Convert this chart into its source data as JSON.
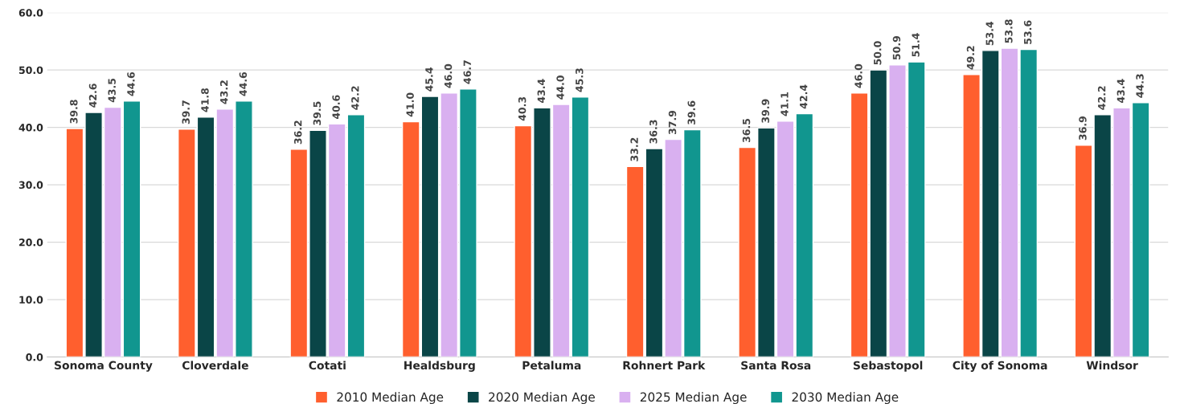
{
  "chart_data": {
    "type": "bar",
    "categories": [
      "Sonoma County",
      "Cloverdale",
      "Cotati",
      "Healdsburg",
      "Petaluma",
      "Rohnert Park",
      "Santa Rosa",
      "Sebastopol",
      "City of Sonoma",
      "Windsor"
    ],
    "series": [
      {
        "name": "2010 Median Age",
        "color": "#ff5f2e",
        "values": [
          39.8,
          39.7,
          36.2,
          41.0,
          40.3,
          33.2,
          36.5,
          46.0,
          49.2,
          36.9
        ],
        "value_labels": [
          "39.8",
          "39.7",
          "36.2",
          "41.0",
          "40.3",
          "33.2",
          "36.5",
          "46.0",
          "49.2",
          "36.9"
        ]
      },
      {
        "name": "2020 Median Age",
        "color": "#0a4547",
        "values": [
          42.6,
          41.8,
          39.5,
          45.4,
          43.4,
          36.3,
          39.9,
          50.0,
          53.4,
          42.2
        ],
        "value_labels": [
          "42.6",
          "41.8",
          "39.5",
          "45.4",
          "43.4",
          "36.3",
          "39.9",
          "50.0",
          "53.4",
          "42.2"
        ]
      },
      {
        "name": "2025 Median Age",
        "color": "#d9b0f0",
        "values": [
          43.5,
          43.2,
          40.6,
          46.0,
          44.0,
          37.9,
          41.1,
          50.9,
          53.8,
          43.4
        ],
        "value_labels": [
          "43.5",
          "43.2",
          "40.6",
          "46.0",
          "44.0",
          "37.9",
          "41.1",
          "50.9",
          "53.8",
          "43.4"
        ]
      },
      {
        "name": "2030 Median Age",
        "color": "#11968f",
        "values": [
          44.6,
          44.6,
          42.2,
          46.7,
          45.3,
          39.6,
          42.4,
          51.4,
          53.6,
          44.3
        ],
        "value_labels": [
          "44.6",
          "44.6",
          "42.2",
          "46.7",
          "45.3",
          "39.6",
          "42.4",
          "51.4",
          "53.6",
          "44.3"
        ]
      }
    ],
    "ylim": [
      0,
      60
    ],
    "yticks": [
      {
        "value": 0,
        "label": "0.0"
      },
      {
        "value": 10,
        "label": "10.0"
      },
      {
        "value": 20,
        "label": "20.0"
      },
      {
        "value": 30,
        "label": "30.0"
      },
      {
        "value": 40,
        "label": "40.0"
      },
      {
        "value": 50,
        "label": "50.0"
      },
      {
        "value": 60,
        "label": "60.0"
      }
    ],
    "grid": "y",
    "legend": "bottom"
  }
}
